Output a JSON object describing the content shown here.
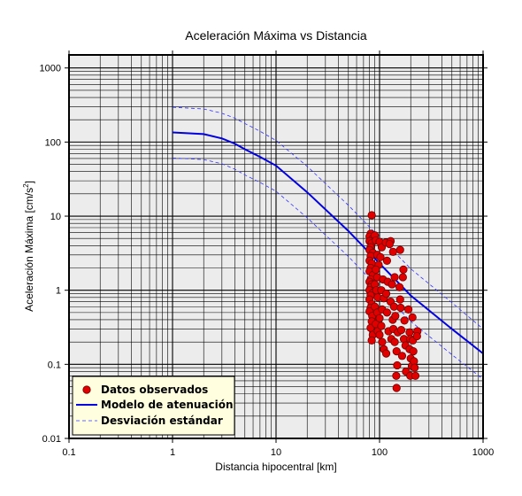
{
  "chart_data": {
    "type": "scatter",
    "title": "Aceleración Máxima vs Distancia",
    "xlabel": "Distancia hipocentral [km]",
    "ylabel_main": "Aceleración Máxima [cm/s",
    "ylabel_sup": "2",
    "ylabel_end": "]",
    "x_scale": "log",
    "y_scale": "log",
    "xlim": [
      0.1,
      1000
    ],
    "ylim": [
      0.01,
      1500
    ],
    "grid": true,
    "legend_position": "bottom-left",
    "x_ticks": [
      {
        "value": 0.1,
        "label": "0.1"
      },
      {
        "value": 1,
        "label": "1"
      },
      {
        "value": 10,
        "label": "10"
      },
      {
        "value": 100,
        "label": "100"
      },
      {
        "value": 1000,
        "label": "1000"
      }
    ],
    "y_ticks": [
      {
        "value": 0.01,
        "label": "0.01"
      },
      {
        "value": 0.1,
        "label": "0.1"
      },
      {
        "value": 1,
        "label": "1"
      },
      {
        "value": 10,
        "label": "10"
      },
      {
        "value": 100,
        "label": "100"
      },
      {
        "value": 1000,
        "label": "1000"
      }
    ],
    "colors": {
      "plot_bg": "#ececec",
      "grid": "#000000",
      "points_fill": "#e00000",
      "points_stroke": "#700000",
      "model": "#0000e0",
      "deviation": "#3333ff",
      "legend_bg": "#ffffe0"
    },
    "series": [
      {
        "name": "Datos observados",
        "kind": "points",
        "points": [
          [
            84,
            10.3
          ],
          [
            82,
            5.8
          ],
          [
            80,
            5.3
          ],
          [
            86,
            5.0
          ],
          [
            80,
            4.6
          ],
          [
            84,
            4.3
          ],
          [
            82,
            3.8
          ],
          [
            80,
            3.5
          ],
          [
            86,
            3.2
          ],
          [
            82,
            2.9
          ],
          [
            80,
            2.5
          ],
          [
            84,
            2.3
          ],
          [
            82,
            2.0
          ],
          [
            80,
            1.8
          ],
          [
            86,
            1.6
          ],
          [
            82,
            1.4
          ],
          [
            80,
            1.3
          ],
          [
            84,
            1.2
          ],
          [
            82,
            1.1
          ],
          [
            80,
            1.0
          ],
          [
            86,
            0.92
          ],
          [
            82,
            0.85
          ],
          [
            80,
            0.75
          ],
          [
            84,
            0.65
          ],
          [
            82,
            0.58
          ],
          [
            80,
            0.52
          ],
          [
            85,
            0.45
          ],
          [
            84,
            0.38
          ],
          [
            82,
            0.31
          ],
          [
            86,
            0.25
          ],
          [
            84,
            0.21
          ],
          [
            90,
            5.5
          ],
          [
            92,
            4.7
          ],
          [
            95,
            3.0
          ],
          [
            98,
            2.2
          ],
          [
            92,
            1.9
          ],
          [
            95,
            1.5
          ],
          [
            90,
            1.2
          ],
          [
            93,
            1.0
          ],
          [
            96,
            0.8
          ],
          [
            90,
            0.6
          ],
          [
            95,
            0.5
          ],
          [
            98,
            0.4
          ],
          [
            92,
            0.35
          ],
          [
            96,
            0.28
          ],
          [
            100,
            4.5
          ],
          [
            105,
            3.8
          ],
          [
            102,
            2.8
          ],
          [
            108,
            1.4
          ],
          [
            104,
            1.0
          ],
          [
            110,
            0.78
          ],
          [
            106,
            0.55
          ],
          [
            100,
            0.42
          ],
          [
            104,
            0.33
          ],
          [
            100,
            0.25
          ],
          [
            106,
            0.2
          ],
          [
            110,
            0.16
          ],
          [
            115,
            4.4
          ],
          [
            118,
            2.5
          ],
          [
            120,
            1.3
          ],
          [
            116,
            0.9
          ],
          [
            118,
            0.5
          ],
          [
            122,
            0.28
          ],
          [
            116,
            0.14
          ],
          [
            128,
            4.6
          ],
          [
            125,
            4.2
          ],
          [
            132,
            1.2
          ],
          [
            128,
            0.7
          ],
          [
            134,
            0.4
          ],
          [
            130,
            0.22
          ],
          [
            135,
            3.3
          ],
          [
            140,
            1.5
          ],
          [
            138,
            0.6
          ],
          [
            142,
            0.45
          ],
          [
            136,
            0.3
          ],
          [
            140,
            0.2
          ],
          [
            150,
            0.27
          ],
          [
            146,
            0.15
          ],
          [
            148,
            0.097
          ],
          [
            145,
            0.07
          ],
          [
            146,
            0.048
          ],
          [
            158,
            3.5
          ],
          [
            156,
            1.1
          ],
          [
            158,
            0.75
          ],
          [
            160,
            0.58
          ],
          [
            162,
            0.29
          ],
          [
            165,
            0.13
          ],
          [
            170,
            1.9
          ],
          [
            168,
            1.5
          ],
          [
            174,
            0.39
          ],
          [
            172,
            0.22
          ],
          [
            178,
            0.18
          ],
          [
            180,
            0.08
          ],
          [
            190,
            0.55
          ],
          [
            195,
            0.27
          ],
          [
            198,
            0.22
          ],
          [
            195,
            0.16
          ],
          [
            200,
            0.12
          ],
          [
            205,
            0.095
          ],
          [
            198,
            0.07
          ],
          [
            208,
            0.43
          ],
          [
            210,
            0.21
          ],
          [
            212,
            0.15
          ],
          [
            215,
            0.11
          ],
          [
            218,
            0.09
          ],
          [
            222,
            0.07
          ],
          [
            232,
            0.28
          ],
          [
            230,
            0.24
          ]
        ]
      },
      {
        "name": "Modelo de atenuación",
        "kind": "line",
        "x": [
          1,
          2,
          3,
          4,
          5,
          7,
          10,
          20,
          50,
          100,
          200,
          500,
          1000
        ],
        "y": [
          135,
          128,
          112,
          95,
          80,
          63,
          48,
          21,
          6.3,
          2.3,
          0.85,
          0.3,
          0.14
        ]
      },
      {
        "name": "Desviación estándar",
        "kind": "dashed",
        "curves": [
          {
            "x": [
              1,
              2,
              3,
              4,
              5,
              7,
              10,
              20,
              50,
              100,
              200,
              500,
              1000
            ],
            "y": [
              295,
              280,
              245,
              210,
              178,
              140,
              105,
              47,
              14,
              5.2,
              1.95,
              0.68,
              0.3
            ]
          },
          {
            "x": [
              1,
              2,
              3,
              4,
              5,
              7,
              10,
              20,
              50,
              100,
              200,
              500,
              1000
            ],
            "y": [
              61,
              58,
              51,
              43,
              36,
              28.5,
              21.7,
              9.5,
              2.85,
              1.04,
              0.38,
              0.135,
              0.063
            ]
          }
        ]
      }
    ]
  }
}
